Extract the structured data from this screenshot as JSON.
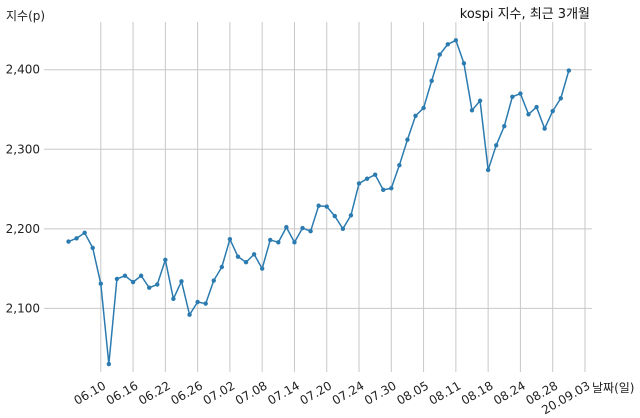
{
  "chart_data": {
    "type": "line",
    "title": "kospi 지수, 최근 3개월",
    "ylabel": "지수(p)",
    "xlabel": "날짜(일)",
    "ylim": [
      2020,
      2460
    ],
    "yticks": [
      2100,
      2200,
      2300,
      2400
    ],
    "ytick_labels": [
      "2,100",
      "2,200",
      "2,300",
      "2,400"
    ],
    "xtick_labels": [
      "06.10",
      "06.16",
      "06.22",
      "06.26",
      "07.02",
      "07.08",
      "07.14",
      "07.20",
      "07.24",
      "07.30",
      "08.05",
      "08.11",
      "08.18",
      "08.24",
      "08.28",
      "20.09.03"
    ],
    "xtick_index": [
      4,
      8,
      12,
      16,
      20,
      24,
      28,
      32,
      36,
      40,
      44,
      48,
      52,
      56,
      60,
      64
    ],
    "grid": true,
    "line_color": "#2b7bb0",
    "series": [
      {
        "values": [
          2184,
          2188,
          2195,
          2176,
          2131,
          2030,
          2137,
          2141,
          2133,
          2141,
          2126,
          2130,
          2161,
          2112,
          2134,
          2092,
          2108,
          2106,
          2135,
          2152,
          2187,
          2165,
          2158,
          2168,
          2150,
          2186,
          2183,
          2202,
          2183,
          2201,
          2197,
          2229,
          2228,
          2216,
          2200,
          2217,
          2257,
          2263,
          2268,
          2249,
          2251,
          2280,
          2312,
          2342,
          2352,
          2386,
          2419,
          2432,
          2437,
          2408,
          2349,
          2361,
          2274,
          2305,
          2329,
          2366,
          2370,
          2344,
          2353,
          2326,
          2348,
          2364,
          2399
        ]
      }
    ]
  }
}
